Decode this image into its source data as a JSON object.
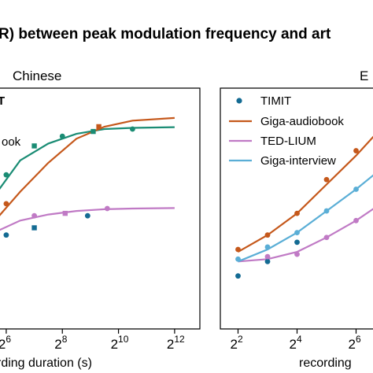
{
  "figure": {
    "title": "R) between peak modulation frequency and art"
  },
  "colors": {
    "timit": "#146b93",
    "giga_audiobook": "#c5581b",
    "ted_lium": "#c07ac5",
    "giga_interview": "#5aaed6",
    "teal": "#1a8c74"
  },
  "chart_data": [
    {
      "type": "scatter",
      "title": "Chinese",
      "xlabel": "rding duration (s)",
      "x_scale": "log2",
      "x_tick_labels": [
        {
          "base": "2",
          "exp": "6",
          "value": 6
        },
        {
          "base": "2",
          "exp": "8",
          "value": 8
        },
        {
          "base": "2",
          "exp": "10",
          "value": 10
        },
        {
          "base": "2",
          "exp": "12",
          "value": 12
        }
      ],
      "xlim": [
        5.75,
        12.9
      ],
      "ylim": [
        0,
        1
      ],
      "grid": false,
      "legend": {
        "placement": "top-left",
        "entries": [
          {
            "label": "T",
            "bold": true,
            "color": "#000000"
          },
          {
            "label": "ook",
            "bold": false,
            "color": "#000000"
          }
        ]
      },
      "series": [
        {
          "color": "#1a8c74",
          "marker": "mixed",
          "points": [
            [
              6,
              0.64
            ],
            [
              7,
              0.76
            ],
            [
              8,
              0.8
            ],
            [
              9.1,
              0.82
            ],
            [
              10.5,
              0.83
            ]
          ],
          "fit": [
            [
              5.75,
              0.58
            ],
            [
              6.5,
              0.7
            ],
            [
              7.5,
              0.77
            ],
            [
              8.5,
              0.81
            ],
            [
              9.5,
              0.83
            ],
            [
              10.5,
              0.835
            ],
            [
              12,
              0.838
            ]
          ]
        },
        {
          "color": "#c5581b",
          "marker": "mixed",
          "points": [
            [
              6,
              0.52
            ],
            [
              9.3,
              0.84
            ]
          ],
          "fit": [
            [
              5.75,
              0.47
            ],
            [
              6.5,
              0.57
            ],
            [
              7.5,
              0.69
            ],
            [
              8.5,
              0.79
            ],
            [
              9.5,
              0.84
            ],
            [
              10.5,
              0.865
            ],
            [
              12,
              0.876
            ]
          ]
        },
        {
          "color": "#c07ac5",
          "marker": "mixed",
          "points": [
            [
              7,
              0.47
            ],
            [
              8.1,
              0.48
            ],
            [
              9.6,
              0.5
            ]
          ],
          "fit": [
            [
              5.75,
              0.41
            ],
            [
              6.5,
              0.45
            ],
            [
              7.5,
              0.475
            ],
            [
              8.5,
              0.49
            ],
            [
              9.5,
              0.497
            ],
            [
              10.5,
              0.5
            ],
            [
              12,
              0.502
            ]
          ]
        },
        {
          "color": "#146b93",
          "marker": "mixed",
          "points": [
            [
              6,
              0.39
            ],
            [
              7,
              0.42
            ],
            [
              8.9,
              0.47
            ]
          ],
          "fit": []
        }
      ]
    },
    {
      "type": "scatter",
      "title": "E",
      "xlabel": "recording",
      "x_scale": "log2",
      "x_tick_labels": [
        {
          "base": "2",
          "exp": "2",
          "value": 2
        },
        {
          "base": "2",
          "exp": "4",
          "value": 4
        },
        {
          "base": "2",
          "exp": "6",
          "value": 6
        }
      ],
      "xlim": [
        1.4,
        6.6
      ],
      "ylim": [
        0,
        1
      ],
      "grid": false,
      "legend": {
        "placement": "top-left",
        "entries": [
          {
            "label": "TIMIT",
            "color": "#146b93",
            "kind": "point"
          },
          {
            "label": "Giga-audiobook",
            "color": "#c5581b",
            "kind": "line"
          },
          {
            "label": "TED-LIUM",
            "color": "#c07ac5",
            "kind": "line"
          },
          {
            "label": "Giga-interview",
            "color": "#5aaed6",
            "kind": "line"
          }
        ]
      },
      "series": [
        {
          "name": "TIMIT",
          "color": "#146b93",
          "marker": "circle",
          "points": [
            [
              2,
              0.22
            ],
            [
              3,
              0.28
            ],
            [
              4,
              0.36
            ]
          ],
          "fit": []
        },
        {
          "name": "Giga-audiobook",
          "color": "#c5581b",
          "marker": "circle",
          "points": [
            [
              2,
              0.33
            ],
            [
              3,
              0.39
            ],
            [
              4,
              0.48
            ],
            [
              5,
              0.62
            ],
            [
              6,
              0.74
            ]
          ],
          "fit": [
            [
              2,
              0.32
            ],
            [
              3,
              0.39
            ],
            [
              4,
              0.48
            ],
            [
              5,
              0.6
            ],
            [
              6,
              0.72
            ],
            [
              6.6,
              0.8
            ]
          ]
        },
        {
          "name": "TED-LIUM",
          "color": "#c07ac5",
          "marker": "circle",
          "points": [
            [
              3,
              0.3
            ],
            [
              4,
              0.31
            ],
            [
              5,
              0.38
            ],
            [
              6,
              0.45
            ]
          ],
          "fit": [
            [
              2,
              0.28
            ],
            [
              3,
              0.29
            ],
            [
              4,
              0.32
            ],
            [
              5,
              0.38
            ],
            [
              6,
              0.45
            ],
            [
              6.6,
              0.5
            ]
          ]
        },
        {
          "name": "Giga-interview",
          "color": "#5aaed6",
          "marker": "circle",
          "points": [
            [
              2,
              0.29
            ],
            [
              3,
              0.34
            ],
            [
              4,
              0.4
            ],
            [
              5,
              0.49
            ],
            [
              6,
              0.58
            ]
          ],
          "fit": [
            [
              2,
              0.28
            ],
            [
              3,
              0.33
            ],
            [
              4,
              0.4
            ],
            [
              5,
              0.49
            ],
            [
              6,
              0.58
            ],
            [
              6.6,
              0.64
            ]
          ]
        }
      ]
    }
  ]
}
